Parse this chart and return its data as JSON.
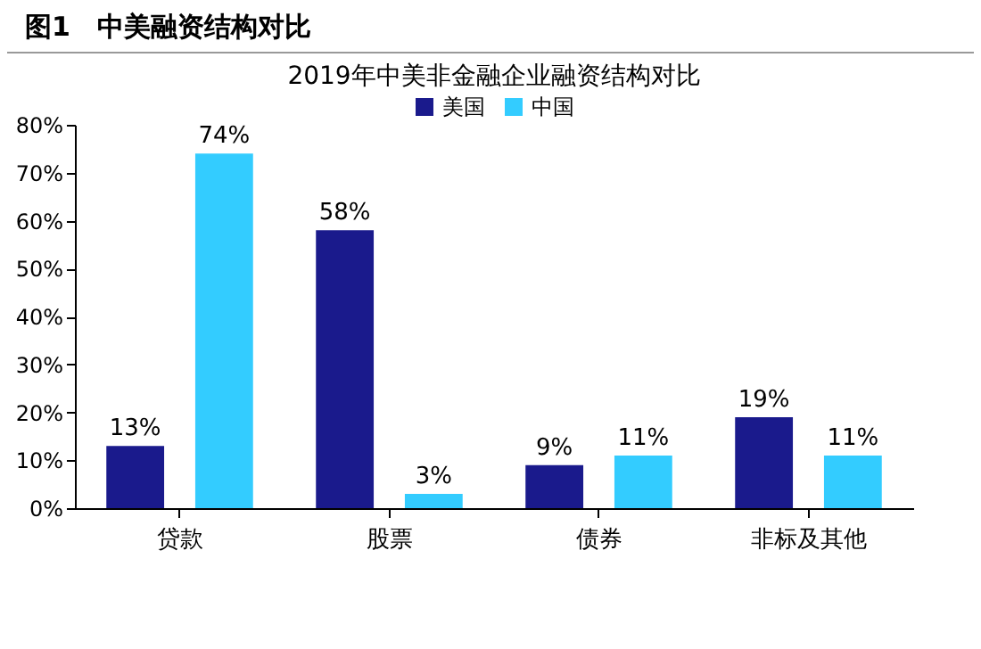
{
  "chart_data": {
    "type": "bar",
    "title": "图1　中美融资结构对比",
    "subtitle": "2019年中美非金融企业融资结构对比",
    "categories": [
      "贷款",
      "股票",
      "债券",
      "非标及其他"
    ],
    "series": [
      {
        "name": "美国",
        "color": "#1a1a8c",
        "values": [
          13,
          58,
          9,
          19
        ],
        "value_labels": [
          "13%",
          "58%",
          "9%",
          "19%"
        ]
      },
      {
        "name": "中国",
        "color": "#33ccff",
        "values": [
          74,
          3,
          11,
          11
        ],
        "value_labels": [
          "74%",
          "3%",
          "11%",
          "11%"
        ]
      }
    ],
    "ylim": [
      0,
      80
    ],
    "yticks": [
      {
        "value": 0,
        "label": "0%"
      },
      {
        "value": 10,
        "label": "10%"
      },
      {
        "value": 20,
        "label": "20%"
      },
      {
        "value": 30,
        "label": "30%"
      },
      {
        "value": 40,
        "label": "40%"
      },
      {
        "value": 50,
        "label": "50%"
      },
      {
        "value": 60,
        "label": "60%"
      },
      {
        "value": 70,
        "label": "70%"
      },
      {
        "value": 80,
        "label": "80%"
      }
    ],
    "grid": false,
    "legend": "top"
  }
}
